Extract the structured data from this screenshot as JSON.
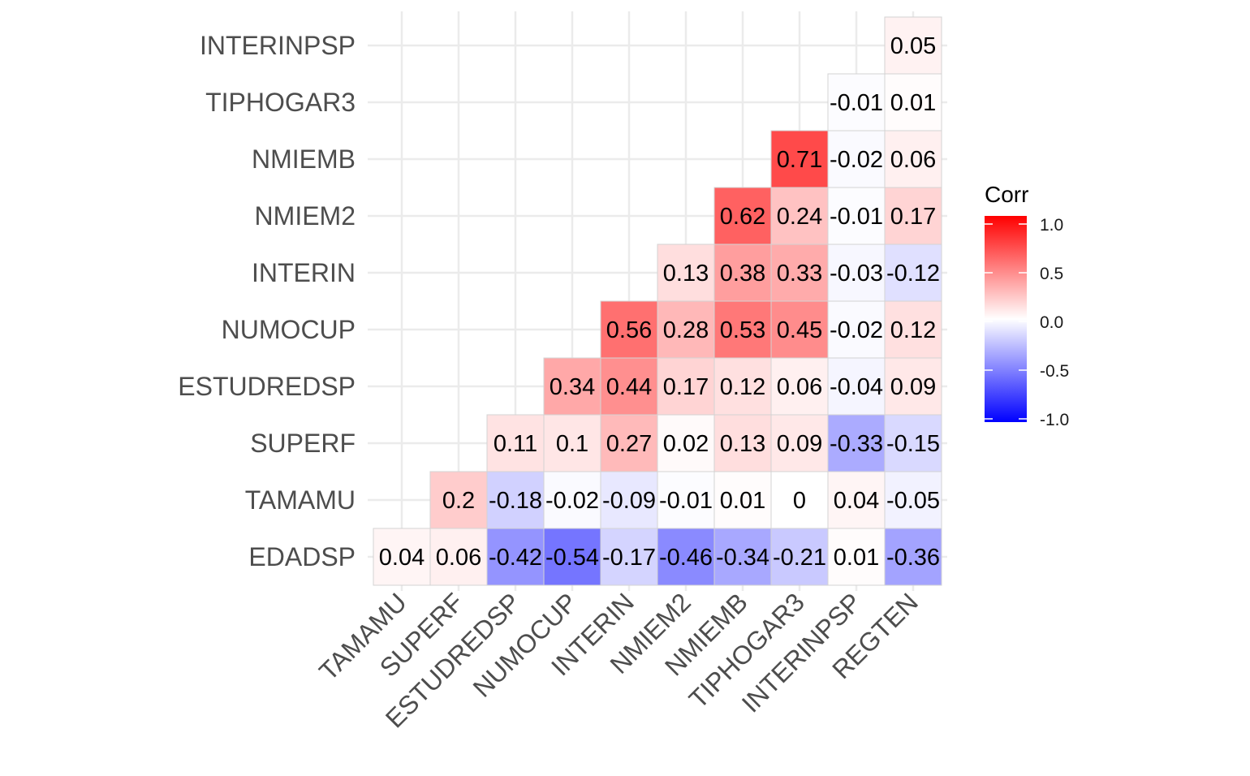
{
  "chart_data": {
    "type": "heatmap",
    "title": "",
    "xlabel": "",
    "ylabel": "",
    "x_categories": [
      "TAMAMU",
      "SUPERF",
      "ESTUDREDSP",
      "NUMOCUP",
      "INTERIN",
      "NMIEM2",
      "NMIEMB",
      "TIPHOGAR3",
      "INTERINPSP",
      "REGTEN"
    ],
    "y_categories": [
      "EDADSP",
      "TAMAMU",
      "SUPERF",
      "ESTUDREDSP",
      "NUMOCUP",
      "INTERIN",
      "NMIEM2",
      "NMIEMB",
      "TIPHOGAR3",
      "INTERINPSP"
    ],
    "cells": [
      {
        "row": "EDADSP",
        "col": "TAMAMU",
        "value": 0.04,
        "label": "0.04"
      },
      {
        "row": "EDADSP",
        "col": "SUPERF",
        "value": 0.06,
        "label": "0.06"
      },
      {
        "row": "EDADSP",
        "col": "ESTUDREDSP",
        "value": -0.42,
        "label": "-0.42"
      },
      {
        "row": "EDADSP",
        "col": "NUMOCUP",
        "value": -0.54,
        "label": "-0.54"
      },
      {
        "row": "EDADSP",
        "col": "INTERIN",
        "value": -0.17,
        "label": "-0.17"
      },
      {
        "row": "EDADSP",
        "col": "NMIEM2",
        "value": -0.46,
        "label": "-0.46"
      },
      {
        "row": "EDADSP",
        "col": "NMIEMB",
        "value": -0.34,
        "label": "-0.34"
      },
      {
        "row": "EDADSP",
        "col": "TIPHOGAR3",
        "value": -0.21,
        "label": "-0.21"
      },
      {
        "row": "EDADSP",
        "col": "INTERINPSP",
        "value": 0.01,
        "label": "0.01"
      },
      {
        "row": "EDADSP",
        "col": "REGTEN",
        "value": -0.36,
        "label": "-0.36"
      },
      {
        "row": "TAMAMU",
        "col": "SUPERF",
        "value": 0.2,
        "label": "0.2"
      },
      {
        "row": "TAMAMU",
        "col": "ESTUDREDSP",
        "value": -0.18,
        "label": "-0.18"
      },
      {
        "row": "TAMAMU",
        "col": "NUMOCUP",
        "value": -0.02,
        "label": "-0.02"
      },
      {
        "row": "TAMAMU",
        "col": "INTERIN",
        "value": -0.09,
        "label": "-0.09"
      },
      {
        "row": "TAMAMU",
        "col": "NMIEM2",
        "value": -0.01,
        "label": "-0.01"
      },
      {
        "row": "TAMAMU",
        "col": "NMIEMB",
        "value": 0.01,
        "label": "0.01"
      },
      {
        "row": "TAMAMU",
        "col": "TIPHOGAR3",
        "value": 0,
        "label": "0"
      },
      {
        "row": "TAMAMU",
        "col": "INTERINPSP",
        "value": 0.04,
        "label": "0.04"
      },
      {
        "row": "TAMAMU",
        "col": "REGTEN",
        "value": -0.05,
        "label": "-0.05"
      },
      {
        "row": "SUPERF",
        "col": "ESTUDREDSP",
        "value": 0.11,
        "label": "0.11"
      },
      {
        "row": "SUPERF",
        "col": "NUMOCUP",
        "value": 0.1,
        "label": "0.1"
      },
      {
        "row": "SUPERF",
        "col": "INTERIN",
        "value": 0.27,
        "label": "0.27"
      },
      {
        "row": "SUPERF",
        "col": "NMIEM2",
        "value": 0.02,
        "label": "0.02"
      },
      {
        "row": "SUPERF",
        "col": "NMIEMB",
        "value": 0.13,
        "label": "0.13"
      },
      {
        "row": "SUPERF",
        "col": "TIPHOGAR3",
        "value": 0.09,
        "label": "0.09"
      },
      {
        "row": "SUPERF",
        "col": "INTERINPSP",
        "value": -0.33,
        "label": "-0.33"
      },
      {
        "row": "SUPERF",
        "col": "REGTEN",
        "value": -0.15,
        "label": "-0.15"
      },
      {
        "row": "ESTUDREDSP",
        "col": "NUMOCUP",
        "value": 0.34,
        "label": "0.34"
      },
      {
        "row": "ESTUDREDSP",
        "col": "INTERIN",
        "value": 0.44,
        "label": "0.44"
      },
      {
        "row": "ESTUDREDSP",
        "col": "NMIEM2",
        "value": 0.17,
        "label": "0.17"
      },
      {
        "row": "ESTUDREDSP",
        "col": "NMIEMB",
        "value": 0.12,
        "label": "0.12"
      },
      {
        "row": "ESTUDREDSP",
        "col": "TIPHOGAR3",
        "value": 0.06,
        "label": "0.06"
      },
      {
        "row": "ESTUDREDSP",
        "col": "INTERINPSP",
        "value": -0.04,
        "label": "-0.04"
      },
      {
        "row": "ESTUDREDSP",
        "col": "REGTEN",
        "value": 0.09,
        "label": "0.09"
      },
      {
        "row": "NUMOCUP",
        "col": "INTERIN",
        "value": 0.56,
        "label": "0.56"
      },
      {
        "row": "NUMOCUP",
        "col": "NMIEM2",
        "value": 0.28,
        "label": "0.28"
      },
      {
        "row": "NUMOCUP",
        "col": "NMIEMB",
        "value": 0.53,
        "label": "0.53"
      },
      {
        "row": "NUMOCUP",
        "col": "TIPHOGAR3",
        "value": 0.45,
        "label": "0.45"
      },
      {
        "row": "NUMOCUP",
        "col": "INTERINPSP",
        "value": -0.02,
        "label": "-0.02"
      },
      {
        "row": "NUMOCUP",
        "col": "REGTEN",
        "value": 0.12,
        "label": "0.12"
      },
      {
        "row": "INTERIN",
        "col": "NMIEM2",
        "value": 0.13,
        "label": "0.13"
      },
      {
        "row": "INTERIN",
        "col": "NMIEMB",
        "value": 0.38,
        "label": "0.38"
      },
      {
        "row": "INTERIN",
        "col": "TIPHOGAR3",
        "value": 0.33,
        "label": "0.33"
      },
      {
        "row": "INTERIN",
        "col": "INTERINPSP",
        "value": -0.03,
        "label": "-0.03"
      },
      {
        "row": "INTERIN",
        "col": "REGTEN",
        "value": -0.12,
        "label": "-0.12"
      },
      {
        "row": "NMIEM2",
        "col": "NMIEMB",
        "value": 0.62,
        "label": "0.62"
      },
      {
        "row": "NMIEM2",
        "col": "TIPHOGAR3",
        "value": 0.24,
        "label": "0.24"
      },
      {
        "row": "NMIEM2",
        "col": "INTERINPSP",
        "value": -0.01,
        "label": "-0.01"
      },
      {
        "row": "NMIEM2",
        "col": "REGTEN",
        "value": 0.17,
        "label": "0.17"
      },
      {
        "row": "NMIEMB",
        "col": "TIPHOGAR3",
        "value": 0.71,
        "label": "0.71"
      },
      {
        "row": "NMIEMB",
        "col": "INTERINPSP",
        "value": -0.02,
        "label": "-0.02"
      },
      {
        "row": "NMIEMB",
        "col": "REGTEN",
        "value": 0.06,
        "label": "0.06"
      },
      {
        "row": "TIPHOGAR3",
        "col": "INTERINPSP",
        "value": -0.01,
        "label": "-0.01"
      },
      {
        "row": "TIPHOGAR3",
        "col": "REGTEN",
        "value": 0.01,
        "label": "0.01"
      },
      {
        "row": "INTERINPSP",
        "col": "REGTEN",
        "value": 0.05,
        "label": "0.05"
      }
    ],
    "legend": {
      "title": "Corr",
      "position": "right",
      "ticks": [
        {
          "value": 1.0,
          "label": "1.0"
        },
        {
          "value": 0.5,
          "label": "0.5"
        },
        {
          "value": 0.0,
          "label": "0.0"
        },
        {
          "value": -0.5,
          "label": "-0.5"
        },
        {
          "value": -1.0,
          "label": "-1.0"
        }
      ],
      "limits": [
        -1,
        1
      ]
    },
    "colors": {
      "low": "#0000ff",
      "mid": "#ffffff",
      "high": "#ff0000"
    },
    "grid": true
  }
}
